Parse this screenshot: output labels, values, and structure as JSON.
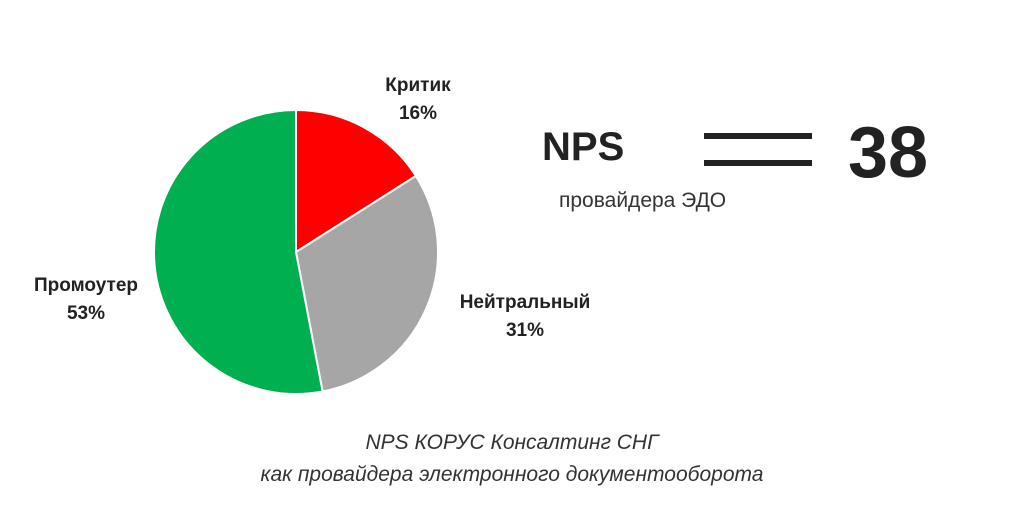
{
  "chart_data": {
    "type": "pie",
    "slices": [
      {
        "label": "Критик",
        "value": 16,
        "value_label": "16%",
        "color": "#ff0000"
      },
      {
        "label": "Нейтральный",
        "value": 31,
        "value_label": "31%",
        "color": "#a6a6a6"
      },
      {
        "label": "Промоутер",
        "value": 53,
        "value_label": "53%",
        "color": "#00b050"
      }
    ],
    "start": "12 o'clock",
    "direction": "clockwise",
    "slice_border_color": "#ffffff"
  },
  "nps": {
    "title": "NPS",
    "subtitle": "провайдера ЭДО",
    "value": "38"
  },
  "caption": {
    "line1": "NPS КОРУС Консалтинг СНГ",
    "line2": "как провайдера электронного документооборота"
  }
}
